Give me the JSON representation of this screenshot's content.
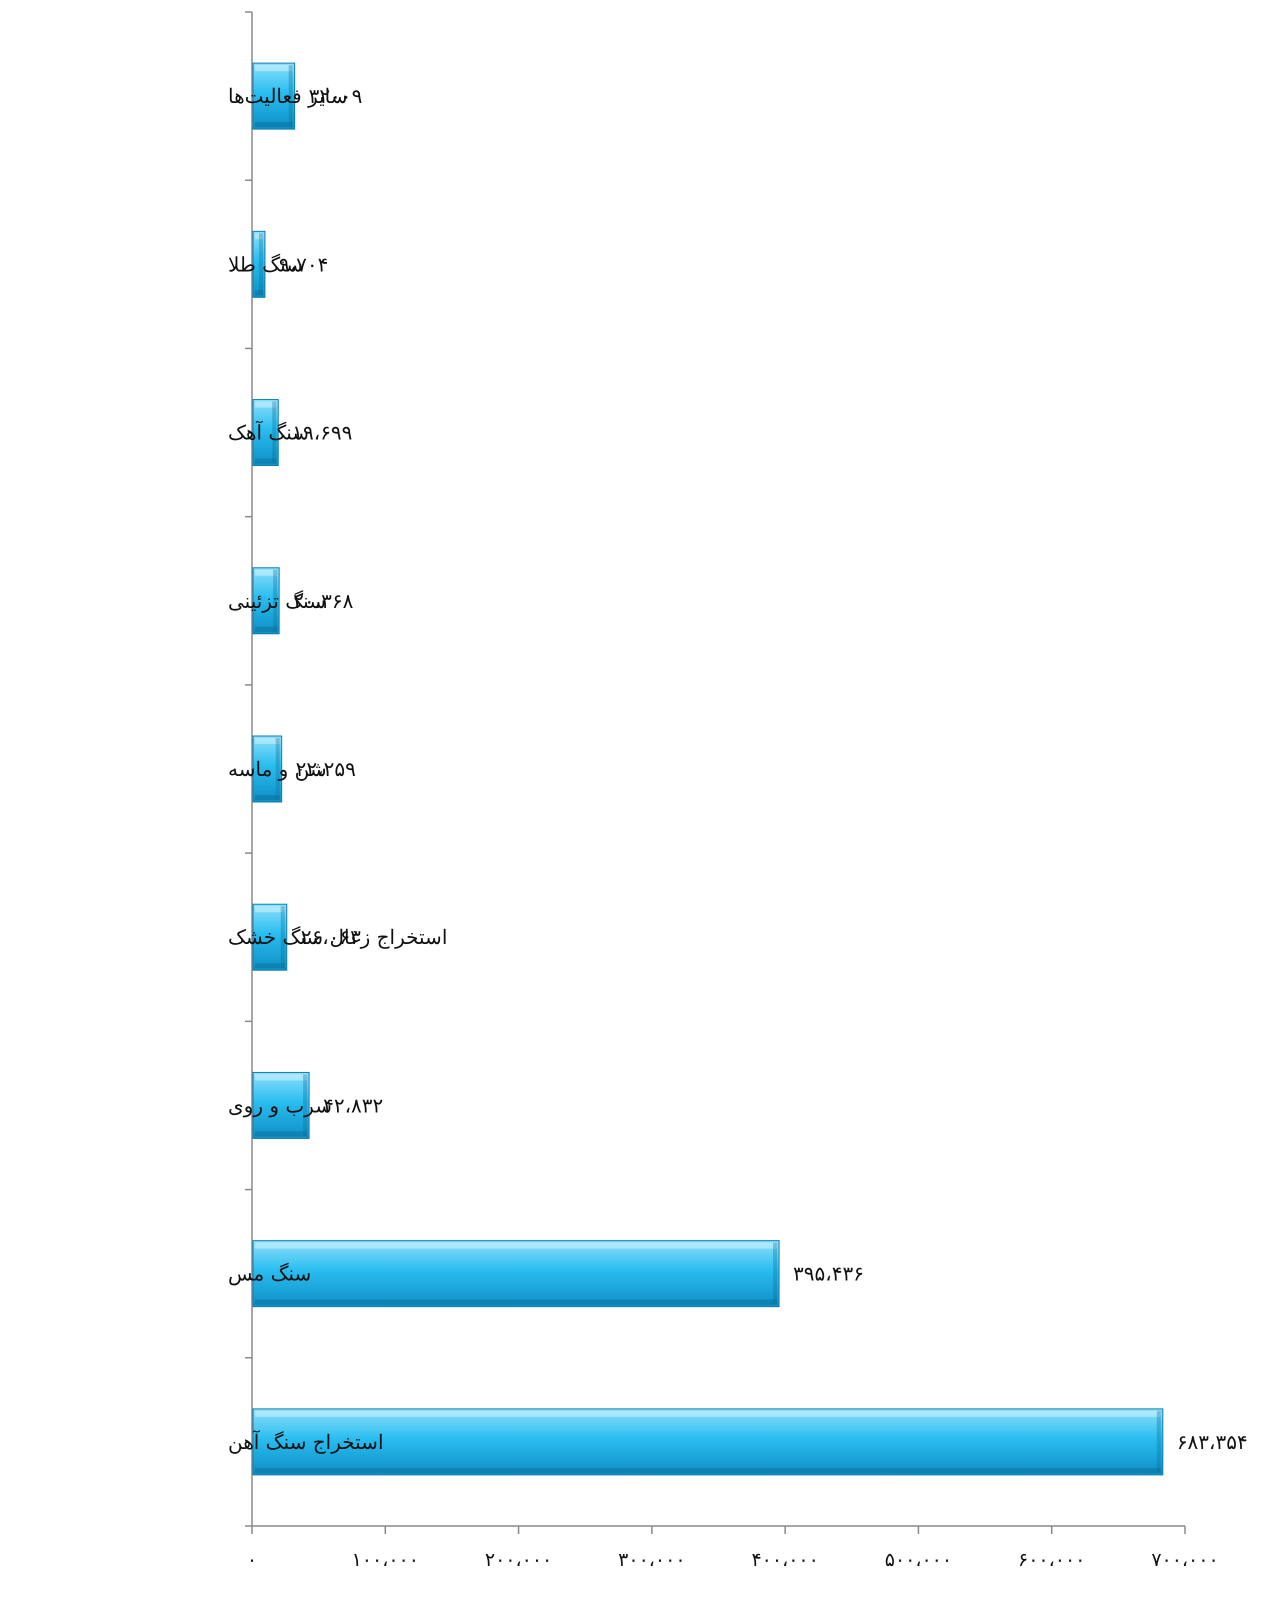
{
  "chart_data": {
    "type": "bar",
    "orientation": "horizontal",
    "categories": [
      "سایر فعالیت‌ها",
      "سنگ طلا",
      "سنگ آهک",
      "سنگ تزئینی",
      "شن و ماسه",
      "استخراج زغال سنگ خشک",
      "سرب و روی",
      "سنگ مس",
      "استخراج سنگ آهن"
    ],
    "values": [
      32009,
      9704,
      19699,
      20368,
      22259,
      26063,
      42832,
      395436,
      683354
    ],
    "value_labels": [
      "۳۲۰۰۹",
      "۹،۷۰۴",
      "۱۹،۶۹۹",
      "۲۰،۳۶۸",
      "۲۲،۲۵۹",
      "۲۶،۰۶۳",
      "۴۲،۸۳۲",
      "۳۹۵،۴۳۶",
      "۶۸۳،۳۵۴"
    ],
    "x_ticks": [
      0,
      100000,
      200000,
      300000,
      400000,
      500000,
      600000,
      700000
    ],
    "x_tick_labels": [
      "۰",
      "۱۰۰،۰۰۰",
      "۲۰۰،۰۰۰",
      "۳۰۰،۰۰۰",
      "۴۰۰،۰۰۰",
      "۵۰۰،۰۰۰",
      "۶۰۰،۰۰۰",
      "۷۰۰،۰۰۰"
    ],
    "xlim": [
      0,
      700000
    ],
    "title": "",
    "xlabel": "",
    "ylabel": "",
    "grid": false,
    "legend": "none",
    "colors": {
      "bar_fill": "#29bdf0",
      "bar_light": "#8fe0fb",
      "bar_dark": "#0f8fc4",
      "bar_edge": "#0b7fb2",
      "axis": "#8a8a8a",
      "text": "#111111"
    }
  }
}
